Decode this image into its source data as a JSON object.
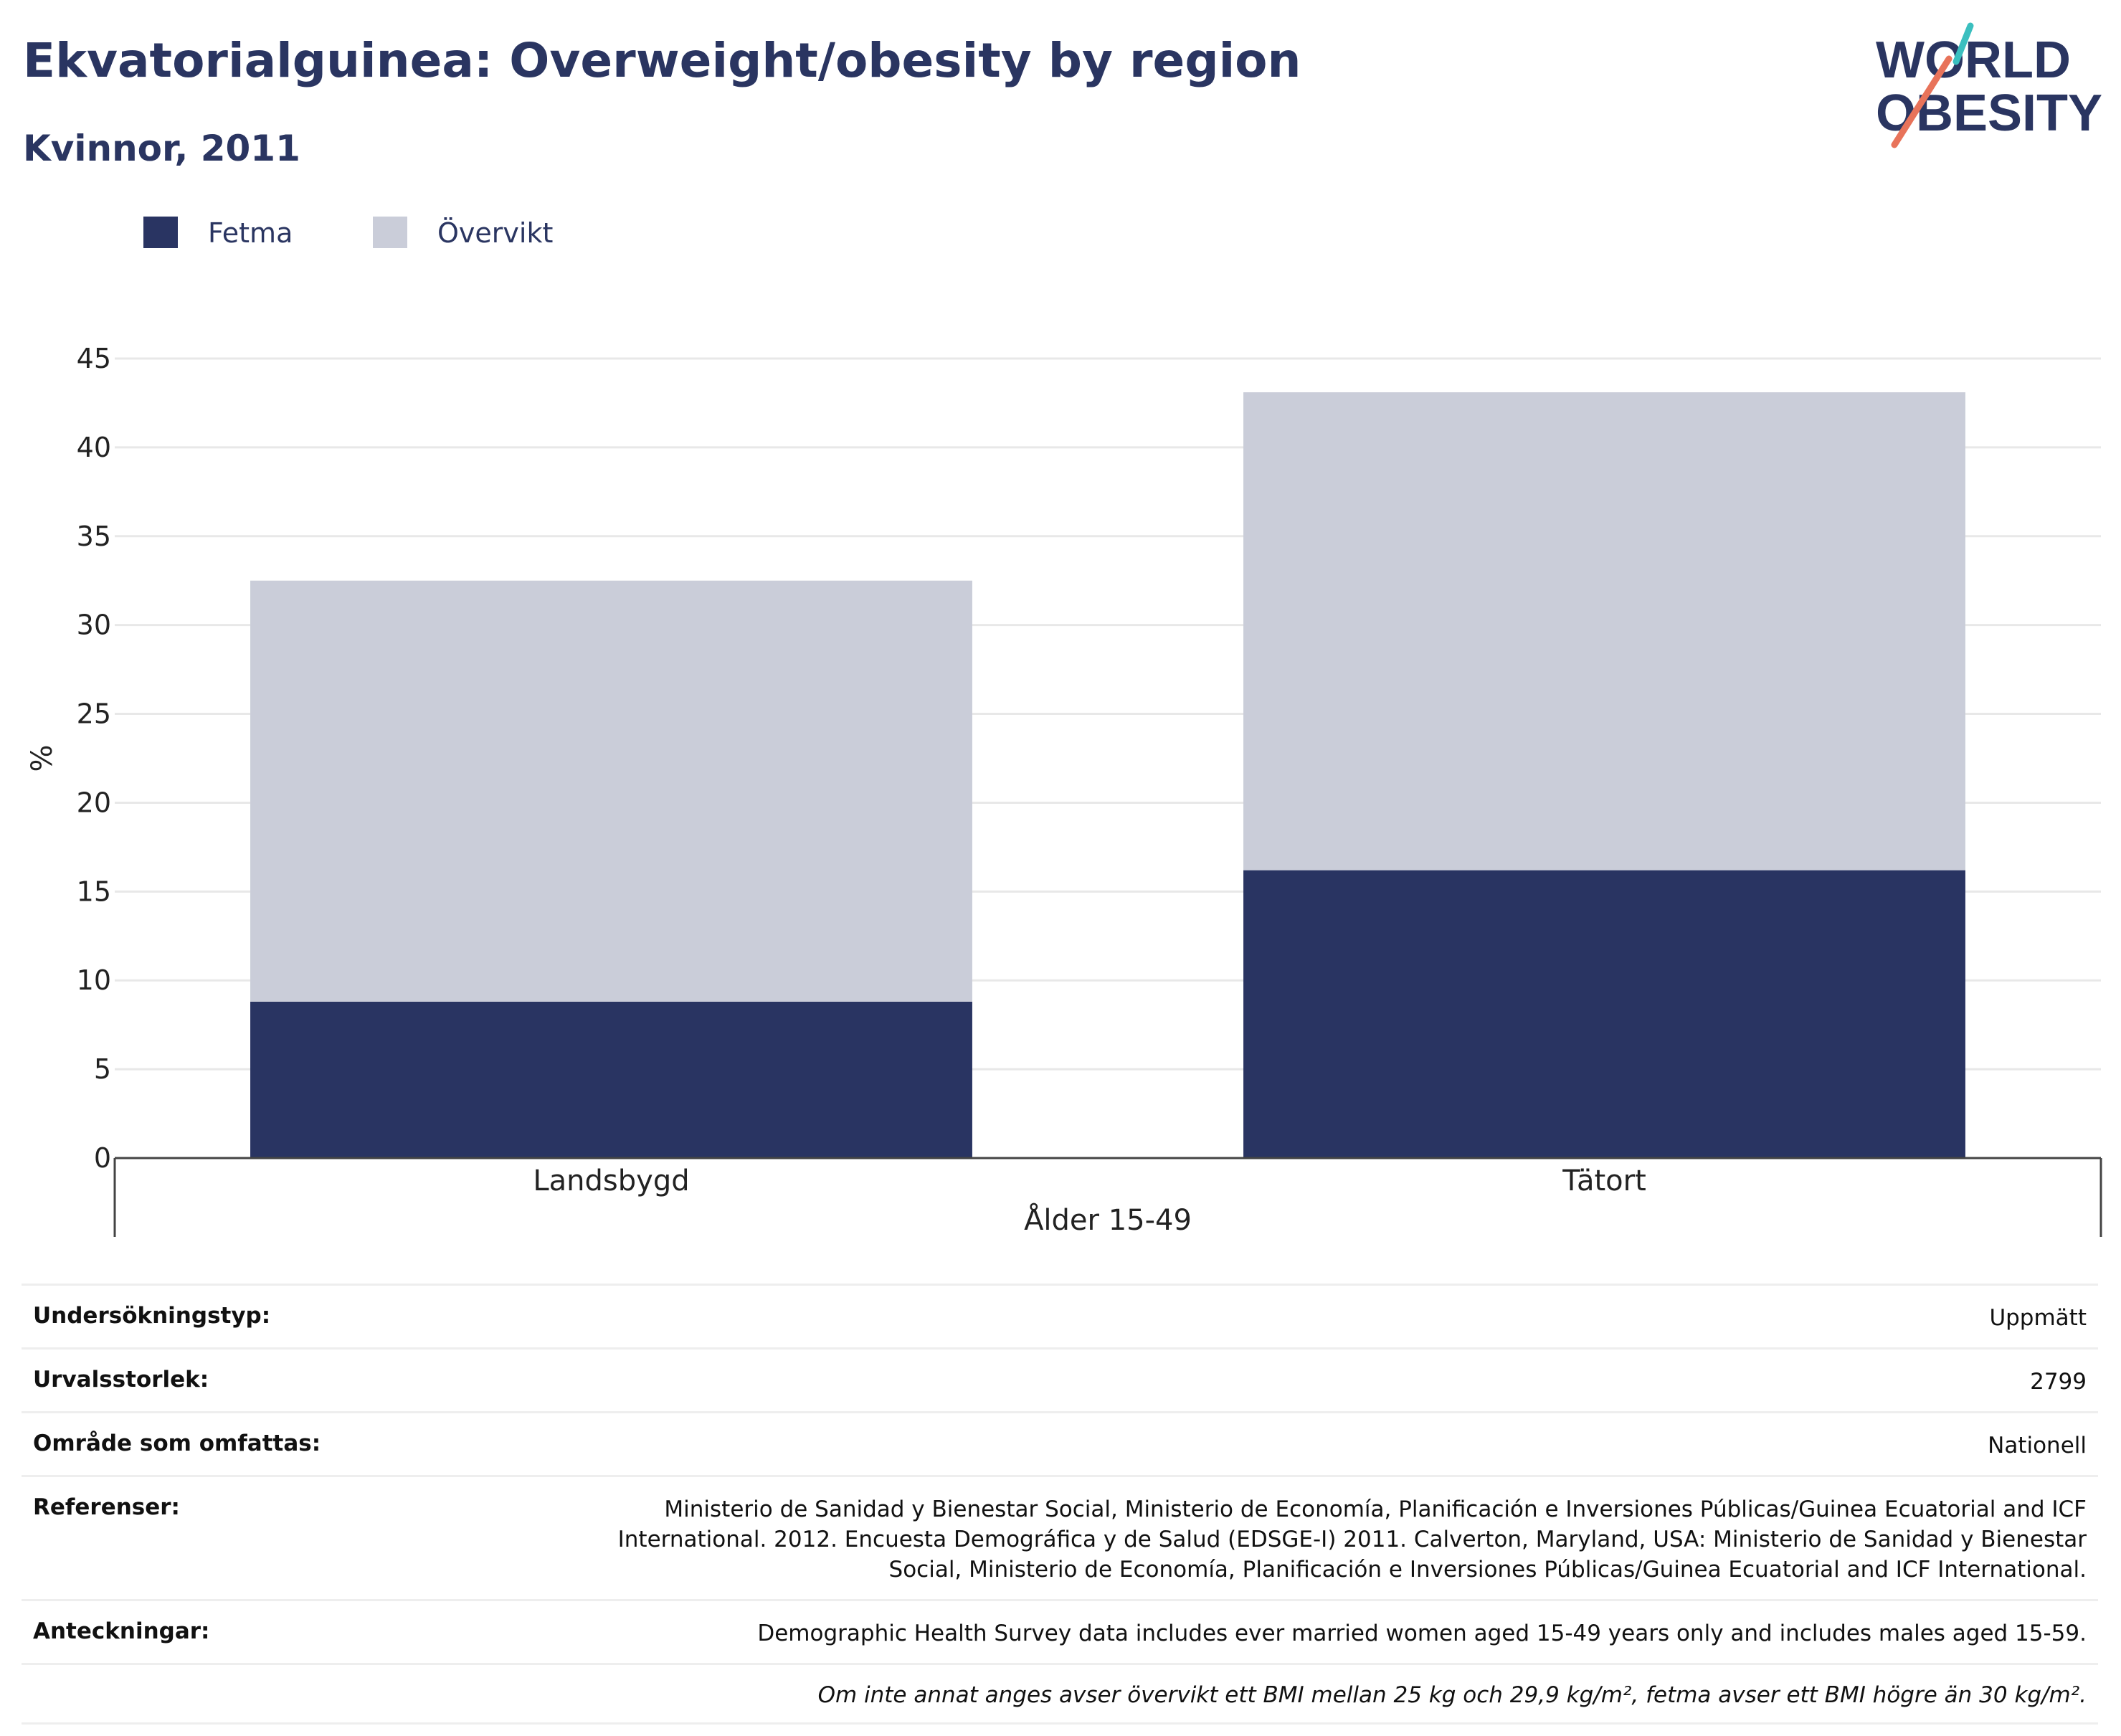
{
  "header": {
    "title": "Ekvatorialguinea: Overweight/obesity by region",
    "subtitle": "Kvinnor, 2011"
  },
  "logo": {
    "line1": "WORLD",
    "line2": "OBESITY",
    "accent_teal": "#3bbfbf",
    "accent_coral": "#e8735a"
  },
  "chart_data": {
    "type": "bar",
    "stacked": true,
    "categories": [
      "Landsbygd",
      "Tätort"
    ],
    "series": [
      {
        "name": "Fetma",
        "values": [
          8.8,
          16.2
        ],
        "color": "#293462"
      },
      {
        "name": "Övervikt",
        "values": [
          23.7,
          26.9
        ],
        "color": "#cacdd9"
      }
    ],
    "ylabel": "%",
    "xlabel": "Ålder 15-49",
    "ylim": [
      0,
      45
    ],
    "yticks": [
      0,
      5,
      10,
      15,
      20,
      25,
      30,
      35,
      40,
      45
    ],
    "grid": true,
    "legend_position": "top-left"
  },
  "meta": {
    "rows": [
      {
        "label": "Undersökningstyp:",
        "value": "Uppmätt"
      },
      {
        "label": "Urvalsstorlek:",
        "value": "2799"
      },
      {
        "label": "Område som omfattas:",
        "value": "Nationell"
      },
      {
        "label": "Referenser:",
        "value": "Ministerio de Sanidad y Bienestar Social, Ministerio de Economía, Planificación e Inversiones Públicas/Guinea Ecuatorial and ICF International. 2012. Encuesta Demográfica y de Salud (EDSGE-I) 2011. Calverton, Maryland, USA: Ministerio de Sanidad y Bienestar Social, Ministerio de Economía, Planificación e Inversiones Públicas/Guinea Ecuatorial and ICF International."
      },
      {
        "label": "Anteckningar:",
        "value": "Demographic Health Survey data includes ever married women aged 15-49 years only and includes males aged 15-59."
      }
    ],
    "footnote": "Om inte annat anges avser övervikt ett BMI mellan 25 kg och 29,9 kg/m², fetma avser ett BMI högre än 30 kg/m²."
  }
}
